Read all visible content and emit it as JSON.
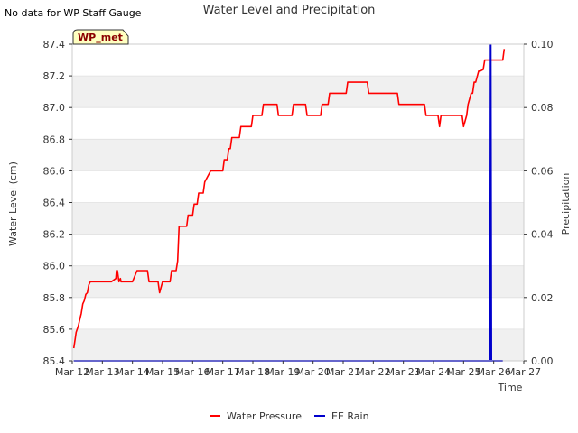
{
  "note": "No data for WP Staff Gauge",
  "station_tag": "WP_met",
  "colors": {
    "water_pressure": "#ff0000",
    "ee_rain": "#0000cc",
    "band": "#f0f0f0",
    "tag_bg": "#ffffc0"
  },
  "chart_data": {
    "type": "line",
    "title": "Water Level and Precipitation",
    "xlabel": "Time",
    "ylabel_left": "Water Level (cm)",
    "ylabel_right": "Precipitation",
    "x_ticks": [
      "Mar 12",
      "Mar 13",
      "Mar 14",
      "Mar 15",
      "Mar 16",
      "Mar 17",
      "Mar 18",
      "Mar 19",
      "Mar 20",
      "Mar 21",
      "Mar 22",
      "Mar 23",
      "Mar 24",
      "Mar 25",
      "Mar 26",
      "Mar 27"
    ],
    "x_range_days": [
      12,
      27
    ],
    "y_left_range": [
      85.4,
      87.4
    ],
    "y_left_ticks": [
      "85.4",
      "85.6",
      "85.8",
      "86.0",
      "86.2",
      "86.4",
      "86.6",
      "86.8",
      "87.0",
      "87.2",
      "87.4"
    ],
    "y_right_range": [
      0.0,
      0.1
    ],
    "y_right_ticks": [
      "0.00",
      "0.02",
      "0.04",
      "0.06",
      "0.08",
      "0.10"
    ],
    "grid": "horizontal bands",
    "legend_position": "bottom-center",
    "series": [
      {
        "name": "Water Pressure",
        "axis": "left",
        "x_days": [
          12.05,
          12.1,
          12.13,
          12.2,
          12.25,
          12.3,
          12.35,
          12.4,
          12.45,
          12.5,
          12.55,
          12.6,
          12.65,
          12.7,
          13.0,
          13.3,
          13.45,
          13.47,
          13.5,
          13.55,
          13.6,
          13.62,
          13.7,
          14.0,
          14.15,
          14.2,
          14.5,
          14.55,
          14.6,
          14.85,
          14.9,
          15.0,
          15.25,
          15.3,
          15.45,
          15.5,
          15.55,
          15.6,
          15.8,
          15.85,
          16.0,
          16.05,
          16.15,
          16.2,
          16.35,
          16.4,
          16.6,
          16.65,
          17.0,
          17.05,
          17.15,
          17.2,
          17.25,
          17.3,
          17.55,
          17.6,
          17.95,
          18.0,
          18.3,
          18.35,
          18.8,
          18.85,
          19.3,
          19.35,
          19.75,
          19.8,
          20.25,
          20.3,
          20.5,
          20.55,
          21.1,
          21.15,
          21.8,
          21.85,
          22.8,
          22.85,
          23.7,
          23.75,
          24.15,
          24.2,
          24.25,
          24.3,
          24.95,
          25.0,
          25.1,
          25.15,
          25.25,
          25.3,
          25.35,
          25.4,
          25.5,
          25.55,
          25.65,
          25.7,
          26.05,
          26.1,
          26.15,
          26.3,
          26.35
        ],
        "y": [
          85.48,
          85.54,
          85.58,
          85.62,
          85.66,
          85.7,
          85.76,
          85.78,
          85.82,
          85.83,
          85.88,
          85.9,
          85.9,
          85.9,
          85.9,
          85.9,
          85.92,
          85.97,
          85.97,
          85.9,
          85.92,
          85.9,
          85.9,
          85.9,
          85.97,
          85.97,
          85.97,
          85.9,
          85.9,
          85.9,
          85.83,
          85.9,
          85.9,
          85.97,
          85.97,
          86.03,
          86.25,
          86.25,
          86.25,
          86.32,
          86.32,
          86.39,
          86.39,
          86.46,
          86.46,
          86.53,
          86.6,
          86.6,
          86.6,
          86.67,
          86.67,
          86.74,
          86.74,
          86.81,
          86.81,
          86.88,
          86.88,
          86.95,
          86.95,
          87.02,
          87.02,
          86.95,
          86.95,
          87.02,
          87.02,
          86.95,
          86.95,
          87.02,
          87.02,
          87.09,
          87.09,
          87.16,
          87.16,
          87.09,
          87.09,
          87.02,
          87.02,
          86.95,
          86.95,
          86.88,
          86.95,
          86.95,
          86.95,
          86.88,
          86.95,
          87.02,
          87.09,
          87.09,
          87.16,
          87.16,
          87.23,
          87.23,
          87.24,
          87.3,
          87.3,
          87.3,
          87.3,
          87.3,
          87.37
        ]
      },
      {
        "name": "EE Rain",
        "axis": "right",
        "x_days": [
          12.05,
          25.85,
          25.88,
          25.9,
          25.92,
          25.94,
          26.3
        ],
        "y": [
          0.0,
          0.0,
          0.0,
          0.1,
          0.0,
          0.0,
          0.0
        ]
      }
    ]
  }
}
